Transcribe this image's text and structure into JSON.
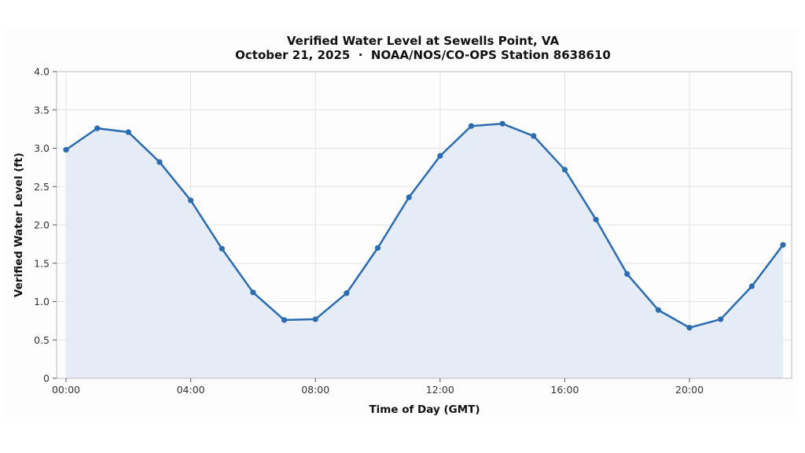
{
  "chart_data": {
    "type": "line",
    "title": "Verified Water Level at Sewells Point, VA",
    "subtitle": "October 21, 2025  ·  NOAA/NOS/CO-OPS Station 8638610",
    "xlabel": "Time of Day (GMT)",
    "ylabel": "Verified Water Level (ft)",
    "xlim": [
      0,
      23
    ],
    "ylim": [
      0,
      4.0
    ],
    "x_ticks": [
      0,
      4,
      8,
      12,
      16,
      20
    ],
    "x_tick_labels": [
      "00:00",
      "04:00",
      "08:00",
      "12:00",
      "16:00",
      "20:00"
    ],
    "y_ticks": [
      0,
      0.5,
      1.0,
      1.5,
      2.0,
      2.5,
      3.0,
      3.5,
      4.0
    ],
    "y_tick_labels": [
      "0",
      "0.5",
      "1.0",
      "1.5",
      "2.0",
      "2.5",
      "3.0",
      "3.5",
      "4.0"
    ],
    "grid": true,
    "series": [
      {
        "x": [
          0,
          1,
          2,
          3,
          4,
          5,
          6,
          7,
          8,
          9,
          10,
          11,
          12,
          13,
          14,
          15,
          16,
          17,
          18,
          19,
          20,
          21,
          22,
          23
        ],
        "values": [
          2.98,
          3.26,
          3.21,
          2.82,
          2.32,
          1.69,
          1.12,
          0.76,
          0.77,
          1.11,
          1.7,
          2.36,
          2.9,
          3.29,
          3.32,
          3.16,
          2.72,
          2.07,
          1.36,
          0.89,
          0.66,
          0.77,
          1.2,
          1.74
        ],
        "color": "#2b6cb0",
        "fill_color": "#e6ecf5"
      }
    ]
  }
}
